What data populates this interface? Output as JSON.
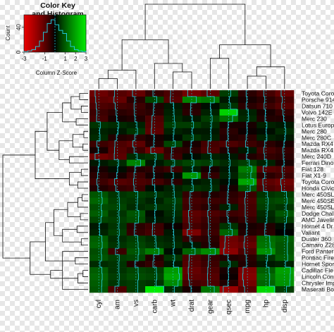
{
  "chart_data": {
    "type": "heatmap",
    "color_key": {
      "title": "Color Key",
      "subtitle": "and Histogram",
      "xlabel": "Column Z-Score",
      "ylabel": "Count",
      "xticks": [
        "-3",
        "-1",
        "1",
        "2",
        "3"
      ],
      "yticks": [
        "0",
        "40"
      ],
      "xlim": [
        -3,
        3
      ],
      "colors": {
        "low": "#ff0000",
        "mid": "#000000",
        "high": "#00ff00"
      },
      "histogram_counts": [
        1,
        2,
        4,
        9,
        18,
        32,
        46,
        52,
        44,
        35,
        30,
        18,
        9,
        4,
        2,
        1
      ]
    },
    "columns": [
      "cyl",
      "am",
      "vs",
      "carb",
      "wt",
      "drat",
      "gear",
      "qsec",
      "mpg",
      "hp",
      "disp"
    ],
    "rows": [
      "Toyota Coro",
      "Porsche 914",
      "Datsun 710",
      "Volvo 142E",
      "Merc 230",
      "Lotus Europ",
      "Merc 280",
      "Merc 280C",
      "Mazda RX4",
      "Mazda RX4",
      "Merc 240D",
      "Ferrari Dino",
      "Fiat 128",
      "Fiat X1-9",
      "Toyota Coro",
      "Honda Civic",
      "Merc 450SL",
      "Merc 450SE",
      "Merc 450SL",
      "Dodge Chall",
      "AMC Javelin",
      "Hornet 4 Dr",
      "Valiant",
      "Duster 360",
      "Camaro Z28",
      "Ford Pantera",
      "Pontiac Fire",
      "Hornet Spor",
      "Cadillac Fle",
      "Lincoln Cont",
      "Chrysler Imp",
      "Maserati Bo"
    ],
    "values": [
      [
        -1.2,
        -0.9,
        -1.1,
        -0.5,
        -0.8,
        -1.3,
        -1.0,
        0.6,
        -0.4,
        -0.7,
        -1.1
      ],
      [
        -1.0,
        -1.1,
        -0.4,
        0.7,
        -0.9,
        1.5,
        1.3,
        0.2,
        -0.2,
        -0.4,
        -0.7
      ],
      [
        -0.8,
        -0.7,
        -0.6,
        -0.3,
        0.2,
        -0.3,
        0.1,
        0.5,
        -0.4,
        -0.6,
        -0.9
      ],
      [
        -0.6,
        -0.4,
        -0.5,
        -0.4,
        0.3,
        -0.4,
        0.3,
        2.6,
        0.3,
        -0.2,
        -0.5
      ],
      [
        -0.7,
        -0.2,
        -0.3,
        -0.8,
        0.4,
        0.2,
        0.6,
        1.2,
        0.4,
        -0.3,
        -0.3
      ],
      [
        0.5,
        0.4,
        0.3,
        -0.9,
        0.6,
        0.6,
        0.4,
        -0.2,
        -0.2,
        0.3,
        0.2
      ],
      [
        0.3,
        0.2,
        0.5,
        -1.0,
        0.3,
        0.2,
        0.2,
        -0.4,
        -0.1,
        0.1,
        0.4
      ],
      [
        0.4,
        -0.3,
        -0.4,
        -0.2,
        0.1,
        0.5,
        0.3,
        -0.3,
        -0.4,
        0.3,
        0.2
      ],
      [
        -0.6,
        -0.8,
        -1.0,
        -0.3,
        0.7,
        -0.2,
        -0.7,
        -0.8,
        -0.6,
        -0.4,
        -0.2
      ],
      [
        -0.2,
        -0.9,
        -0.6,
        -1.2,
        -0.5,
        -0.4,
        -0.8,
        -0.3,
        0.2,
        -0.7,
        -0.5
      ],
      [
        -1.2,
        -1.0,
        0.4,
        0.5,
        -0.6,
        0.1,
        0.3,
        0.2,
        -0.3,
        -0.5,
        -0.4
      ],
      [
        0.2,
        0.4,
        1.5,
        0.2,
        0.5,
        0.7,
        0.6,
        0.4,
        0.6,
        0.3,
        -0.2
      ],
      [
        -0.2,
        0.1,
        -0.3,
        -0.4,
        -0.6,
        0.3,
        -0.2,
        0.2,
        1.4,
        -0.9,
        -0.8
      ],
      [
        -0.4,
        -0.2,
        -0.6,
        -0.2,
        0.1,
        1.8,
        -0.5,
        0.3,
        1.1,
        -0.4,
        -0.6
      ],
      [
        -0.6,
        -0.9,
        -0.8,
        -0.7,
        -0.4,
        0.2,
        0.3,
        0.1,
        2.0,
        -1.0,
        -1.2
      ],
      [
        -0.3,
        -0.5,
        -0.6,
        0.1,
        0.3,
        0.5,
        0.4,
        -0.2,
        0.9,
        -0.8,
        -1.0
      ],
      [
        0.9,
        0.5,
        0.6,
        0.5,
        0.4,
        -0.5,
        -0.3,
        -0.4,
        -0.6,
        0.5,
        0.6
      ],
      [
        1.1,
        0.6,
        0.5,
        0.3,
        0.6,
        -0.7,
        -0.6,
        -0.5,
        -0.8,
        0.7,
        0.8
      ],
      [
        0.8,
        0.7,
        0.4,
        0.5,
        0.5,
        -0.6,
        -0.4,
        0.3,
        -0.7,
        0.6,
        0.5
      ],
      [
        1.0,
        0.5,
        0.9,
        0.1,
        0.4,
        -1.0,
        -0.8,
        -0.6,
        -0.7,
        0.4,
        0.9
      ],
      [
        0.7,
        0.6,
        0.8,
        0.2,
        0.3,
        -0.9,
        -0.6,
        -0.3,
        -0.5,
        0.3,
        0.6
      ],
      [
        0.2,
        0.5,
        -0.4,
        -0.6,
        -0.1,
        -0.7,
        -0.5,
        0.5,
        -0.2,
        -0.3,
        0.1
      ],
      [
        0.3,
        0.6,
        -0.5,
        -0.7,
        0.2,
        -1.4,
        -0.6,
        1.1,
        -0.3,
        -0.4,
        0.0
      ],
      [
        1.0,
        0.4,
        0.6,
        0.4,
        0.3,
        -0.5,
        -0.4,
        -1.2,
        -0.9,
        1.2,
        1.0
      ],
      [
        1.1,
        0.5,
        0.7,
        0.5,
        0.4,
        0.2,
        -0.3,
        -1.3,
        -1.1,
        1.3,
        0.9
      ],
      [
        0.8,
        -0.6,
        0.9,
        1.4,
        0.1,
        1.1,
        1.6,
        -1.6,
        -0.8,
        1.7,
        0.9
      ],
      [
        0.9,
        0.6,
        0.7,
        -0.3,
        0.5,
        -0.8,
        -0.5,
        -0.3,
        -0.4,
        0.5,
        1.0
      ],
      [
        0.4,
        0.5,
        -0.3,
        -0.5,
        0.2,
        -0.9,
        -0.6,
        0.4,
        -0.3,
        0.2,
        0.3
      ],
      [
        1.0,
        0.5,
        0.7,
        0.6,
        1.8,
        -1.1,
        -0.8,
        -0.2,
        -1.4,
        1.0,
        1.9
      ],
      [
        1.1,
        0.6,
        0.8,
        0.7,
        2.0,
        -1.0,
        -0.9,
        -0.1,
        -1.5,
        1.2,
        1.8
      ],
      [
        1.0,
        0.5,
        0.6,
        0.5,
        1.6,
        -0.7,
        -0.8,
        -0.3,
        -1.3,
        1.1,
        1.7
      ],
      [
        0.9,
        -0.8,
        0.6,
        3.0,
        0.4,
        -0.2,
        1.3,
        -1.8,
        -0.9,
        2.7,
        0.6
      ]
    ]
  }
}
